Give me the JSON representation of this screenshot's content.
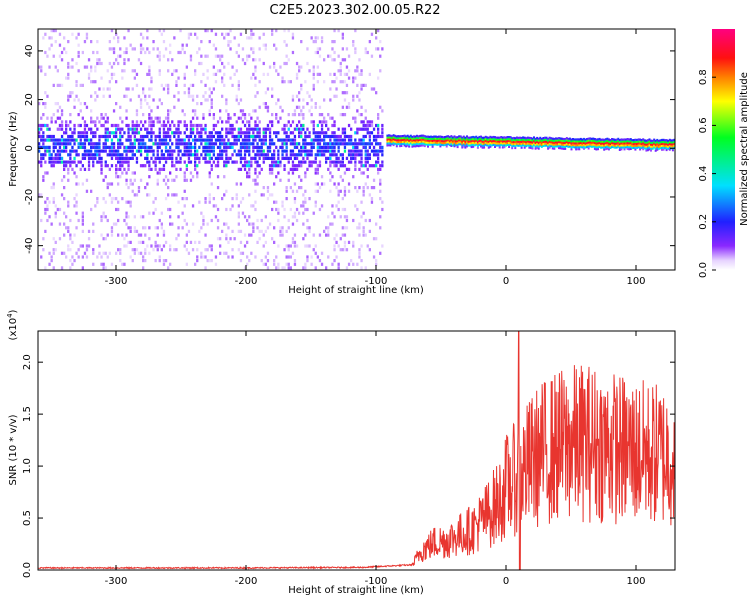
{
  "figure": {
    "title": "C2E5.2023.302.00.05.R22"
  },
  "chart_data": [
    {
      "type": "heatmap",
      "xlabel": "Height of straight line (km)",
      "ylabel": "Frequency (Hz)",
      "xlim": [
        -360,
        130
      ],
      "ylim": [
        -50,
        49
      ],
      "xticks": [
        -300,
        -200,
        -100,
        0,
        100
      ],
      "yticks": [
        -40,
        -20,
        0,
        20,
        40
      ],
      "colorbar": {
        "label": "Normalized spectral amplitude",
        "range": [
          0.0,
          1.0
        ],
        "ticks": [
          "0.0",
          "0.2",
          "0.4",
          "0.6",
          "0.8"
        ],
        "ticks_values": [
          0.0,
          0.2,
          0.4,
          0.6,
          0.8
        ],
        "colormap": "rainbow (white→violet→blue→cyan→green→yellow→orange→red→magenta)"
      },
      "regions": [
        {
          "x_range": [
            -360,
            -95
          ],
          "description": "broadband scattered noise",
          "core_band_hz": [
            -10,
            10
          ],
          "core_amplitude": 0.15,
          "noise_amplitude": 0.03
        },
        {
          "x_range": [
            -92,
            130
          ],
          "description": "narrow coherent line",
          "center_hz_start": 3,
          "center_hz_end": 1,
          "amplitude": 0.9
        }
      ]
    },
    {
      "type": "line",
      "xlabel": "Height of straight line (km)",
      "ylabel": "SNR (10 * v/v)",
      "y_multiplier": "(x10^4)",
      "xlim": [
        -360,
        130
      ],
      "ylim": [
        0,
        23000
      ],
      "xticks": [
        -300,
        -200,
        -100,
        0,
        100
      ],
      "yticks": [
        0,
        5000,
        10000,
        15000,
        20000
      ],
      "ytick_labels": [
        "0.0",
        "0.5",
        "1.0",
        "1.5",
        "2.0"
      ],
      "color": "#e8352f",
      "series": [
        {
          "x": [
            -360,
            -300,
            -200,
            -110,
            -72,
            -65,
            -55,
            -45,
            -35,
            -25,
            -15,
            -5,
            0,
            10,
            20,
            30,
            40,
            50,
            60,
            70,
            80,
            90,
            100,
            110,
            120,
            130
          ],
          "values": [
            200,
            200,
            200,
            250,
            500,
            2000,
            2800,
            3000,
            3600,
            4200,
            5500,
            7000,
            8500,
            9500,
            11000,
            12000,
            12500,
            12800,
            13000,
            12800,
            12500,
            12200,
            12000,
            11800,
            11700,
            11500
          ]
        }
      ],
      "noteworthy": {
        "peak_x": 10,
        "peak_value": 23000,
        "dip_x": 10,
        "dip_value": 0
      }
    }
  ]
}
